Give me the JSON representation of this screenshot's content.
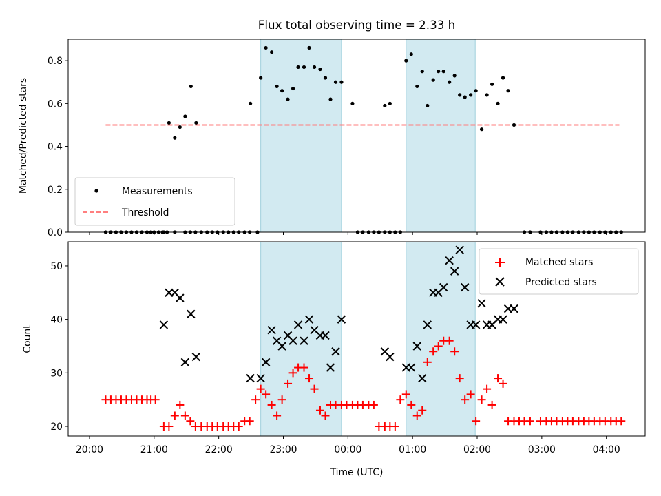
{
  "title": "Flux total observing time = 2.33 h",
  "xlabel": "Time (UTC)",
  "x_ticks": [
    "20:00",
    "21:00",
    "22:00",
    "23:00",
    "00:00",
    "01:00",
    "02:00",
    "03:00",
    "04:00"
  ],
  "colors": {
    "band": "#add8e6",
    "measurements": "#000000",
    "threshold": "#ff7f7f",
    "matched": "#ff0000",
    "predicted": "#000000"
  },
  "chart_data": [
    {
      "type": "scatter",
      "ylabel": "Matched/Predicted stars",
      "xlim": [
        -0.33,
        8.6
      ],
      "ylim": [
        0,
        0.9
      ],
      "y_ticks": [
        0.0,
        0.2,
        0.4,
        0.6,
        0.8
      ],
      "y_tick_labels": [
        "0.0",
        "0.2",
        "0.4",
        "0.6",
        "0.8"
      ],
      "grid": false,
      "legend_position": "lower left",
      "shaded_ranges_hours": [
        [
          2.65,
          3.9
        ],
        [
          4.9,
          5.97
        ]
      ],
      "threshold": {
        "name": "Threshold",
        "y": 0.5,
        "x_range": [
          0.25,
          8.2
        ]
      },
      "series": [
        {
          "name": "Measurements",
          "x": [
            0.25,
            0.33,
            0.41,
            0.49,
            0.57,
            0.65,
            0.73,
            0.81,
            0.89,
            0.95,
            1.13,
            1.2,
            1.32,
            1.48,
            1.56,
            1.64,
            1.73,
            1.82,
            1.9,
            1.98,
            2.07,
            2.15,
            2.23,
            2.31,
            2.4,
            2.48,
            2.6,
            1.0,
            1.07,
            1.15,
            1.23,
            1.32,
            1.4,
            1.48,
            1.57,
            1.65,
            2.49,
            2.65,
            2.73,
            2.82,
            2.9,
            2.98,
            3.07,
            3.15,
            3.23,
            3.32,
            3.4,
            3.48,
            3.57,
            3.65,
            3.73,
            3.81,
            3.9,
            4.07,
            4.15,
            4.23,
            4.32,
            4.4,
            4.48,
            4.57,
            4.65,
            4.73,
            4.81,
            4.57,
            4.65,
            4.9,
            4.98,
            5.07,
            5.15,
            5.23,
            5.32,
            5.4,
            5.48,
            5.57,
            5.65,
            5.73,
            5.81,
            5.9,
            5.98,
            6.07,
            6.15,
            6.23,
            6.32,
            6.4,
            6.48,
            6.57,
            6.73,
            6.82,
            6.98,
            7.07,
            7.15,
            7.23,
            7.32,
            7.4,
            7.48,
            7.57,
            7.65,
            7.73,
            7.81,
            7.9,
            7.98,
            8.07,
            8.15,
            8.23
          ],
          "y": [
            0,
            0,
            0,
            0,
            0,
            0,
            0,
            0,
            0,
            0,
            0,
            0,
            0,
            0,
            0,
            0,
            0,
            0,
            0,
            0,
            0,
            0,
            0,
            0,
            0,
            0,
            0,
            0,
            0,
            0,
            0.51,
            0.44,
            0.49,
            0.54,
            0.68,
            0.51,
            0.6,
            0.72,
            0.86,
            0.84,
            0.68,
            0.66,
            0.62,
            0.67,
            0.77,
            0.77,
            0.86,
            0.77,
            0.76,
            0.72,
            0.62,
            0.7,
            0.7,
            0.6,
            0,
            0,
            0,
            0,
            0,
            0,
            0,
            0,
            0,
            0.59,
            0.6,
            0.8,
            0.83,
            0.68,
            0.75,
            0.59,
            0.71,
            0.75,
            0.75,
            0.7,
            0.73,
            0.64,
            0.63,
            0.64,
            0.66,
            0.48,
            0.64,
            0.69,
            0.6,
            0.72,
            0.66,
            0.5,
            0,
            0,
            0,
            0,
            0,
            0,
            0,
            0,
            0,
            0,
            0,
            0,
            0,
            0,
            0,
            0,
            0,
            0
          ]
        }
      ]
    },
    {
      "type": "scatter",
      "ylabel": "Count",
      "xlim": [
        -0.33,
        8.6
      ],
      "ylim": [
        18.2,
        54.5
      ],
      "y_ticks": [
        20,
        30,
        40,
        50
      ],
      "y_tick_labels": [
        "20",
        "30",
        "40",
        "50"
      ],
      "grid": false,
      "legend_position": "upper right",
      "shaded_ranges_hours": [
        [
          2.65,
          3.9
        ],
        [
          4.9,
          5.97
        ]
      ],
      "series": [
        {
          "name": "Matched stars",
          "x": [
            0.25,
            0.33,
            0.41,
            0.49,
            0.57,
            0.65,
            0.73,
            0.81,
            0.89,
            0.95,
            1.02,
            1.15,
            1.23,
            1.32,
            1.4,
            1.48,
            1.56,
            1.64,
            1.73,
            1.82,
            1.9,
            1.98,
            2.07,
            2.15,
            2.23,
            2.31,
            2.4,
            2.48,
            2.57,
            2.65,
            2.73,
            2.82,
            2.9,
            2.98,
            3.07,
            3.15,
            3.23,
            3.32,
            3.4,
            3.48,
            3.57,
            3.65,
            3.73,
            3.81,
            3.9,
            3.98,
            4.07,
            4.15,
            4.23,
            4.32,
            4.4,
            4.48,
            4.57,
            4.65,
            4.73,
            4.81,
            4.9,
            4.98,
            5.07,
            5.15,
            5.23,
            5.32,
            5.4,
            5.48,
            5.57,
            5.65,
            5.73,
            5.81,
            5.9,
            5.98,
            6.07,
            6.15,
            6.23,
            6.32,
            6.4,
            6.48,
            6.57,
            6.65,
            6.73,
            6.82,
            6.98,
            7.07,
            7.15,
            7.23,
            7.32,
            7.4,
            7.48,
            7.57,
            7.65,
            7.73,
            7.81,
            7.9,
            7.98,
            8.07,
            8.15,
            8.23
          ],
          "y": [
            25,
            25,
            25,
            25,
            25,
            25,
            25,
            25,
            25,
            25,
            25,
            20,
            20,
            22,
            24,
            22,
            21,
            20,
            20,
            20,
            20,
            20,
            20,
            20,
            20,
            20,
            21,
            21,
            25,
            27,
            26,
            24,
            22,
            25,
            28,
            30,
            31,
            31,
            29,
            27,
            23,
            22,
            24,
            24,
            24,
            24,
            24,
            24,
            24,
            24,
            24,
            20,
            20,
            20,
            20,
            25,
            26,
            24,
            22,
            23,
            32,
            34,
            35,
            36,
            36,
            34,
            29,
            25,
            26,
            21,
            25,
            27,
            24,
            29,
            28,
            21,
            21,
            21,
            21,
            21,
            21,
            21,
            21,
            21,
            21,
            21,
            21,
            21,
            21,
            21,
            21,
            21,
            21,
            21,
            21,
            21
          ]
        },
        {
          "name": "Predicted stars",
          "x": [
            1.15,
            1.23,
            1.32,
            1.4,
            1.48,
            1.57,
            1.65,
            2.49,
            2.65,
            2.73,
            2.82,
            2.9,
            2.98,
            3.07,
            3.15,
            3.23,
            3.32,
            3.4,
            3.48,
            3.57,
            3.65,
            3.73,
            3.81,
            3.9,
            4.57,
            4.65,
            4.9,
            4.98,
            5.07,
            5.15,
            5.23,
            5.32,
            5.4,
            5.48,
            5.57,
            5.65,
            5.73,
            5.81,
            5.9,
            5.98,
            6.07,
            6.15,
            6.23,
            6.32,
            6.4,
            6.48,
            6.57
          ],
          "y": [
            39,
            45,
            45,
            44,
            32,
            41,
            33,
            29,
            29,
            32,
            38,
            36,
            35,
            37,
            36,
            39,
            36,
            40,
            38,
            37,
            37,
            31,
            34,
            40,
            34,
            33,
            31,
            31,
            35,
            29,
            39,
            45,
            45,
            46,
            51,
            49,
            53,
            46,
            39,
            39,
            43,
            39,
            39,
            40,
            40,
            42,
            42
          ]
        }
      ]
    }
  ]
}
